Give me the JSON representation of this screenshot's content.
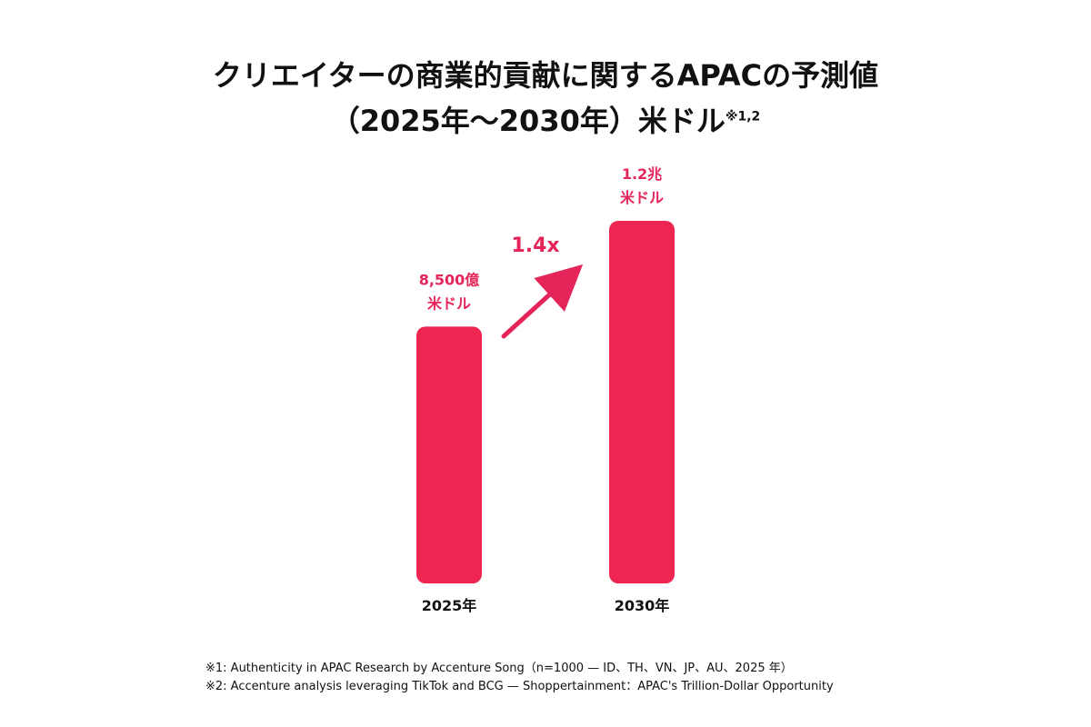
{
  "title": {
    "line1": "クリエイターの商業的貢献に関するAPACの予測値",
    "line2": "（2025年～2030年）米ドル",
    "note_ref": "※1,2"
  },
  "chart_data": {
    "type": "bar",
    "categories": [
      "2025年",
      "2030年"
    ],
    "values": [
      8500,
      12000
    ],
    "unit": "億米ドル",
    "value_labels": [
      [
        "8,500億",
        "米ドル"
      ],
      [
        "1.2兆",
        "米ドル"
      ]
    ],
    "annotation": "1.4x",
    "ylim": [
      0,
      12000
    ],
    "grid": false,
    "legend": "none"
  },
  "footnotes": [
    "※1: Authenticity in APAC Research by Accenture Song（n=1000 — ID、TH、VN、JP、AU、2025 年）",
    "※2: Accenture analysis leveraging TikTok and BCG — Shoppertainment：APAC's Trillion-Dollar Opportunity"
  ],
  "colors": {
    "bar": "#EE2451",
    "label": "#E5245A",
    "arrow": "#E5245A",
    "text": "#111111"
  }
}
